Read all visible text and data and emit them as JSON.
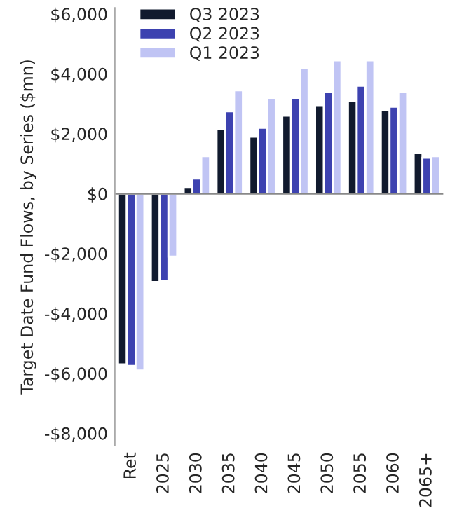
{
  "chart_data": {
    "type": "bar",
    "ylabel": "Target Date Fund Flows, by Series ($mn)",
    "categories": [
      "Ret",
      "2025",
      "2030",
      "2035",
      "2040",
      "2045",
      "2050",
      "2055",
      "2060",
      "2065+"
    ],
    "series": [
      {
        "name": "Q3 2023",
        "color": "#111a2e",
        "values": [
          -5700,
          -2950,
          220,
          2150,
          1900,
          2600,
          2950,
          3100,
          2800,
          1350
        ]
      },
      {
        "name": "Q2 2023",
        "color": "#3d42b0",
        "values": [
          -5750,
          -2900,
          500,
          2750,
          2200,
          3200,
          3400,
          3600,
          2900,
          1200
        ]
      },
      {
        "name": "Q1 2023",
        "color": "#c0c4f4",
        "values": [
          -5900,
          -2100,
          1250,
          3450,
          3200,
          4200,
          4450,
          4450,
          3400,
          1250
        ]
      }
    ],
    "ylim": [
      -8400,
      6200
    ],
    "yticks": [
      {
        "value": 6000,
        "label": "$6,000"
      },
      {
        "value": 4000,
        "label": "$4,000"
      },
      {
        "value": 2000,
        "label": "$2,000"
      },
      {
        "value": 0,
        "label": "$0"
      },
      {
        "value": -2000,
        "label": "-$2,000"
      },
      {
        "value": -4000,
        "label": "-$4,000"
      },
      {
        "value": -6000,
        "label": "-$6,000"
      },
      {
        "value": -8000,
        "label": "-$8,000"
      }
    ],
    "ref_lines": [
      {
        "axis": "y",
        "value": 0,
        "color": "#888888"
      }
    ],
    "grid": false,
    "legend": "top left"
  }
}
